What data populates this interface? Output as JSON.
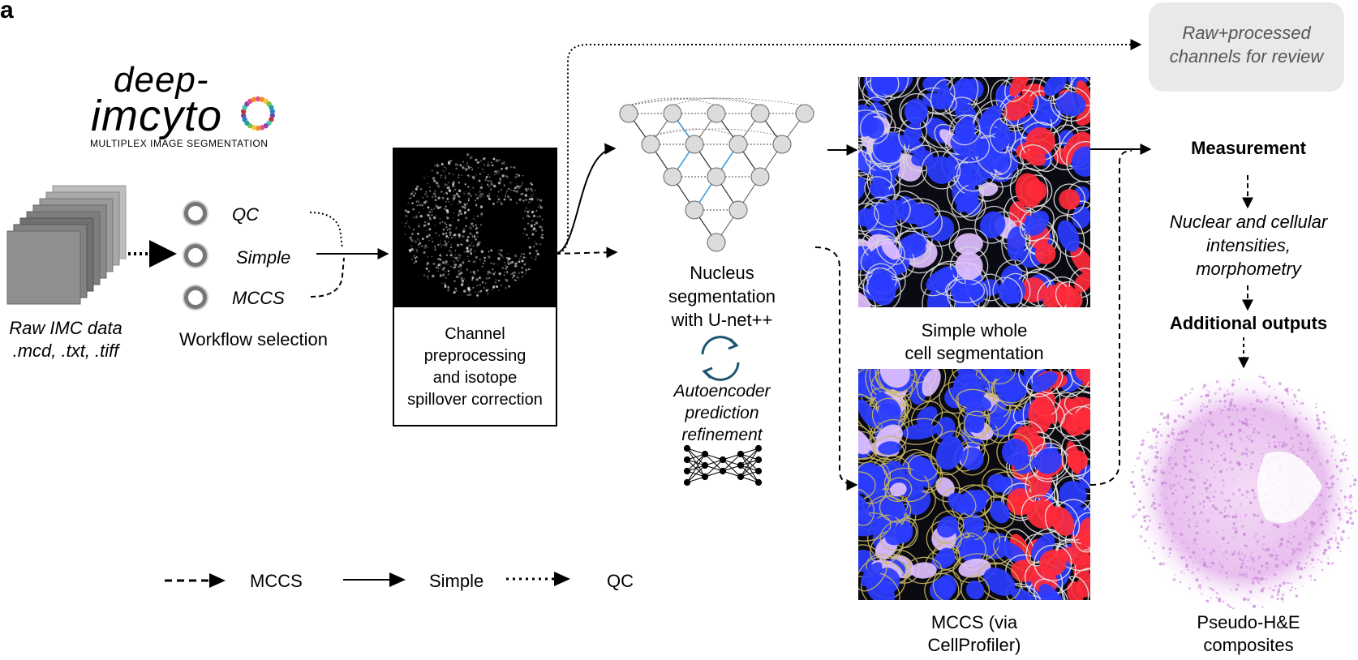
{
  "panel_label": "a",
  "logo": {
    "line1": "deep-",
    "line2": "imcyto",
    "subtitle": "MULTIPLEX IMAGE SEGMENTATION"
  },
  "input": {
    "label_line1": "Raw IMC data",
    "label_line2": ".mcd, .txt, .tiff"
  },
  "workflow": {
    "options": [
      "QC",
      "Simple",
      "MCCS"
    ],
    "label": "Workflow selection"
  },
  "preprocessing": {
    "label_line1": "Channel",
    "label_line2": "preprocessing",
    "label_line3": "and isotope",
    "label_line4": "spillover correction"
  },
  "review": {
    "line1": "Raw+processed",
    "line2": "channels for review"
  },
  "nucleus": {
    "line1": "Nucleus",
    "line2": "segmentation",
    "line3": "with U-net++",
    "refine1": "Autoencoder",
    "refine2": "prediction",
    "refine3": "refinement"
  },
  "simple_seg": {
    "line1": "Simple whole",
    "line2": "cell segmentation"
  },
  "mccs_seg": {
    "line1": "MCCS (via",
    "line2": "CellProfiler)"
  },
  "outputs": {
    "measurement": "Measurement",
    "intensities1": "Nuclear and cellular",
    "intensities2": "intensities,",
    "intensities3": "morphometry",
    "additional": "Additional outputs",
    "pseudo1": "Pseudo-H&E",
    "pseudo2": "composites"
  },
  "legend": {
    "mccs": "MCCS",
    "simple": "Simple",
    "qc": "QC"
  },
  "colors": {
    "review_box": "#e9e9e9",
    "unet_node": "#dcdcdc",
    "unet_skip_blue": "#3399dd",
    "refine_icon": "#1f5670",
    "nucleus_blue": "#2a3cff",
    "tumor_red": "#ff2a3a",
    "he_purple": "#c880d8"
  }
}
